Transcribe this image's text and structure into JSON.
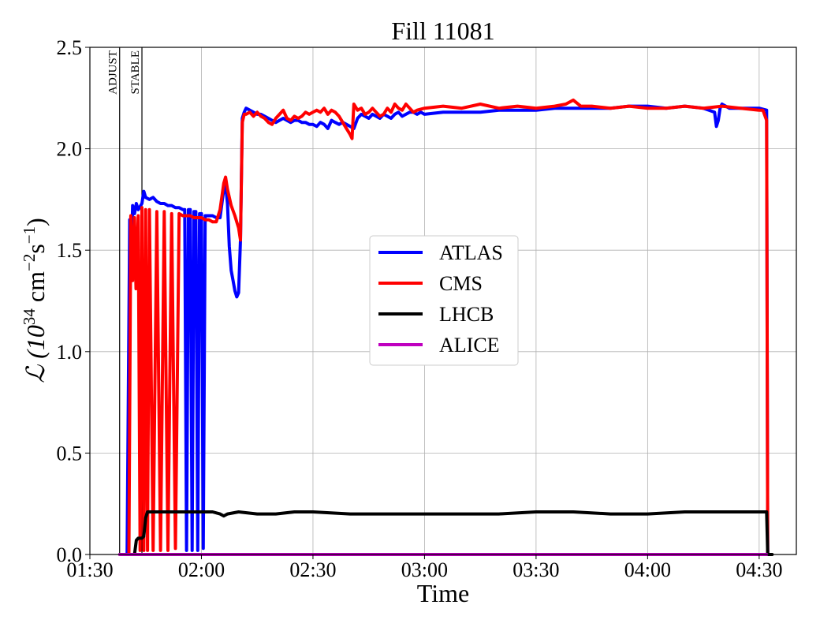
{
  "chart_data": {
    "type": "line",
    "title": "Fill 11081",
    "xlabel": "Time",
    "ylabel_main": "ℒ (10",
    "ylabel_exp1": "34",
    "ylabel_mid": " cm",
    "ylabel_exp2": "−2",
    "ylabel_s": "s",
    "ylabel_exp3": "−1",
    "ylabel_end": ")",
    "xlim": [
      "01:30",
      "04:40"
    ],
    "ylim": [
      0,
      2.5
    ],
    "grid": true,
    "legend_position": "center-right",
    "x_ticks": [
      "01:30",
      "02:00",
      "02:30",
      "03:00",
      "03:30",
      "04:00",
      "04:30"
    ],
    "y_ticks": [
      "0.0",
      "0.5",
      "1.0",
      "1.5",
      "2.0",
      "2.5"
    ],
    "markers": [
      {
        "label": "ADJUST",
        "time": "01:38"
      },
      {
        "label": "STABLE",
        "time": "01:44"
      }
    ],
    "series": [
      {
        "name": "ATLAS",
        "color": "#0000ff",
        "points": [
          [
            "01:40",
            "0.00"
          ],
          [
            "01:40.7",
            "1.65"
          ],
          [
            "01:41",
            "1.35"
          ],
          [
            "01:41.5",
            "1.72"
          ],
          [
            "01:42",
            "1.68"
          ],
          [
            "01:42.5",
            "1.73"
          ],
          [
            "01:43",
            "1.70"
          ],
          [
            "01:44",
            "1.73"
          ],
          [
            "01:44.5",
            "1.79"
          ],
          [
            "01:45",
            "1.76"
          ],
          [
            "01:46",
            "1.75"
          ],
          [
            "01:47",
            "1.76"
          ],
          [
            "01:48",
            "1.74"
          ],
          [
            "01:49",
            "1.73"
          ],
          [
            "01:50",
            "1.73"
          ],
          [
            "01:51",
            "1.72"
          ],
          [
            "01:52",
            "1.72"
          ],
          [
            "01:53",
            "1.71"
          ],
          [
            "01:54",
            "1.71"
          ],
          [
            "01:55",
            "1.70"
          ],
          [
            "01:55.5",
            "1.70"
          ],
          [
            "01:56",
            "0.02"
          ],
          [
            "01:56.5",
            "1.70"
          ],
          [
            "01:57",
            "1.70"
          ],
          [
            "01:57.5",
            "0.02"
          ],
          [
            "01:58",
            "1.69"
          ],
          [
            "01:58.5",
            "1.69"
          ],
          [
            "01:59",
            "0.02"
          ],
          [
            "01:59.5",
            "1.68"
          ],
          [
            "02:00",
            "1.68"
          ],
          [
            "02:00.5",
            "0.03"
          ],
          [
            "02:01",
            "1.67"
          ],
          [
            "02:02",
            "1.67"
          ],
          [
            "02:03",
            "1.67"
          ],
          [
            "02:04",
            "1.66"
          ],
          [
            "02:05",
            "1.66"
          ],
          [
            "02:06",
            "1.80"
          ],
          [
            "02:06.5",
            "1.82"
          ],
          [
            "02:07",
            "1.73"
          ],
          [
            "02:07.5",
            "1.52"
          ],
          [
            "02:08",
            "1.40"
          ],
          [
            "02:08.5",
            "1.35"
          ],
          [
            "02:09",
            "1.30"
          ],
          [
            "02:09.5",
            "1.27"
          ],
          [
            "02:10",
            "1.29"
          ],
          [
            "02:10.5",
            "1.55"
          ],
          [
            "02:11",
            "2.15"
          ],
          [
            "02:11.5",
            "2.18"
          ],
          [
            "02:12",
            "2.20"
          ],
          [
            "02:13",
            "2.19"
          ],
          [
            "02:14",
            "2.18"
          ],
          [
            "02:15",
            "2.17"
          ],
          [
            "02:16",
            "2.17"
          ],
          [
            "02:17",
            "2.16"
          ],
          [
            "02:18",
            "2.15"
          ],
          [
            "02:19",
            "2.14"
          ],
          [
            "02:20",
            "2.13"
          ],
          [
            "02:21",
            "2.14"
          ],
          [
            "02:22",
            "2.15"
          ],
          [
            "02:23",
            "2.14"
          ],
          [
            "02:24",
            "2.13"
          ],
          [
            "02:25",
            "2.14"
          ],
          [
            "02:26",
            "2.14"
          ],
          [
            "02:27",
            "2.13"
          ],
          [
            "02:28",
            "2.13"
          ],
          [
            "02:29",
            "2.12"
          ],
          [
            "02:30",
            "2.12"
          ],
          [
            "02:31",
            "2.11"
          ],
          [
            "02:32",
            "2.13"
          ],
          [
            "02:33",
            "2.12"
          ],
          [
            "02:34",
            "2.10"
          ],
          [
            "02:35",
            "2.14"
          ],
          [
            "02:36",
            "2.13"
          ],
          [
            "02:37",
            "2.12"
          ],
          [
            "02:38",
            "2.13"
          ],
          [
            "02:39",
            "2.12"
          ],
          [
            "02:40",
            "2.11"
          ],
          [
            "02:41",
            "2.10"
          ],
          [
            "02:42",
            "2.15"
          ],
          [
            "02:43",
            "2.17"
          ],
          [
            "02:44",
            "2.16"
          ],
          [
            "02:45",
            "2.15"
          ],
          [
            "02:46",
            "2.17"
          ],
          [
            "02:47",
            "2.16"
          ],
          [
            "02:48",
            "2.15"
          ],
          [
            "02:49",
            "2.17"
          ],
          [
            "02:50",
            "2.16"
          ],
          [
            "02:51",
            "2.15"
          ],
          [
            "02:52",
            "2.17"
          ],
          [
            "02:53",
            "2.18"
          ],
          [
            "02:54",
            "2.16"
          ],
          [
            "02:55",
            "2.17"
          ],
          [
            "02:56",
            "2.18"
          ],
          [
            "02:57",
            "2.18"
          ],
          [
            "02:58",
            "2.17"
          ],
          [
            "02:59",
            "2.18"
          ],
          [
            "03:00",
            "2.17"
          ],
          [
            "03:05",
            "2.18"
          ],
          [
            "03:10",
            "2.18"
          ],
          [
            "03:15",
            "2.18"
          ],
          [
            "03:20",
            "2.19"
          ],
          [
            "03:25",
            "2.19"
          ],
          [
            "03:30",
            "2.19"
          ],
          [
            "03:35",
            "2.20"
          ],
          [
            "03:40",
            "2.20"
          ],
          [
            "03:45",
            "2.20"
          ],
          [
            "03:50",
            "2.20"
          ],
          [
            "03:55",
            "2.21"
          ],
          [
            "04:00",
            "2.21"
          ],
          [
            "04:05",
            "2.20"
          ],
          [
            "04:10",
            "2.21"
          ],
          [
            "04:15",
            "2.20"
          ],
          [
            "04:18",
            "2.18"
          ],
          [
            "04:18.5",
            "2.11"
          ],
          [
            "04:19",
            "2.14"
          ],
          [
            "04:19.5",
            "2.20"
          ],
          [
            "04:20",
            "2.22"
          ],
          [
            "04:22",
            "2.20"
          ],
          [
            "04:25",
            "2.20"
          ],
          [
            "04:28",
            "2.20"
          ],
          [
            "04:30",
            "2.20"
          ],
          [
            "04:32",
            "2.19"
          ],
          [
            "04:32.3",
            "0.00"
          ]
        ]
      },
      {
        "name": "CMS",
        "color": "#ff0000",
        "points": [
          [
            "01:40.5",
            "0.00"
          ],
          [
            "01:41",
            "1.67"
          ],
          [
            "01:41.5",
            "1.35"
          ],
          [
            "01:42",
            "1.66"
          ],
          [
            "01:42.4",
            "1.31"
          ],
          [
            "01:43",
            "1.67"
          ],
          [
            "01:43.5",
            "0.02"
          ],
          [
            "01:44",
            "1.71"
          ],
          [
            "01:44.5",
            "0.02"
          ],
          [
            "01:45",
            "1.70"
          ],
          [
            "01:45.5",
            "0.02"
          ],
          [
            "01:46",
            "1.70"
          ],
          [
            "01:47",
            "0.02"
          ],
          [
            "01:48",
            "1.69"
          ],
          [
            "01:49",
            "0.02"
          ],
          [
            "01:50",
            "1.69"
          ],
          [
            "01:51",
            "0.02"
          ],
          [
            "01:52",
            "1.68"
          ],
          [
            "01:53",
            "0.03"
          ],
          [
            "01:54",
            "1.68"
          ],
          [
            "01:55",
            "1.67"
          ],
          [
            "01:56",
            "1.67"
          ],
          [
            "01:57",
            "1.67"
          ],
          [
            "01:58",
            "1.66"
          ],
          [
            "01:59",
            "1.66"
          ],
          [
            "02:00",
            "1.66"
          ],
          [
            "02:01",
            "1.65"
          ],
          [
            "02:02",
            "1.65"
          ],
          [
            "02:03",
            "1.64"
          ],
          [
            "02:04",
            "1.64"
          ],
          [
            "02:05",
            "1.70"
          ],
          [
            "02:06",
            "1.83"
          ],
          [
            "02:06.5",
            "1.86"
          ],
          [
            "02:07",
            "1.80"
          ],
          [
            "02:08",
            "1.72"
          ],
          [
            "02:09",
            "1.67"
          ],
          [
            "02:10",
            "1.61"
          ],
          [
            "02:10.5",
            "1.55"
          ],
          [
            "02:11",
            "2.13"
          ],
          [
            "02:11.5",
            "2.17"
          ],
          [
            "02:12",
            "2.17"
          ],
          [
            "02:13",
            "2.18"
          ],
          [
            "02:14",
            "2.16"
          ],
          [
            "02:15",
            "2.18"
          ],
          [
            "02:16",
            "2.16"
          ],
          [
            "02:17",
            "2.15"
          ],
          [
            "02:18",
            "2.13"
          ],
          [
            "02:19",
            "2.12"
          ],
          [
            "02:20",
            "2.15"
          ],
          [
            "02:21",
            "2.17"
          ],
          [
            "02:22",
            "2.19"
          ],
          [
            "02:23",
            "2.15"
          ],
          [
            "02:24",
            "2.14"
          ],
          [
            "02:25",
            "2.16"
          ],
          [
            "02:26",
            "2.15"
          ],
          [
            "02:27",
            "2.16"
          ],
          [
            "02:28",
            "2.18"
          ],
          [
            "02:29",
            "2.17"
          ],
          [
            "02:30",
            "2.18"
          ],
          [
            "02:31",
            "2.19"
          ],
          [
            "02:32",
            "2.18"
          ],
          [
            "02:33",
            "2.20"
          ],
          [
            "02:34",
            "2.17"
          ],
          [
            "02:35",
            "2.19"
          ],
          [
            "02:36",
            "2.18"
          ],
          [
            "02:37",
            "2.16"
          ],
          [
            "02:38",
            "2.13"
          ],
          [
            "02:39",
            "2.10"
          ],
          [
            "02:40",
            "2.07"
          ],
          [
            "02:40.5",
            "2.05"
          ],
          [
            "02:41",
            "2.22"
          ],
          [
            "02:42",
            "2.19"
          ],
          [
            "02:43",
            "2.20"
          ],
          [
            "02:44",
            "2.17"
          ],
          [
            "02:45",
            "2.18"
          ],
          [
            "02:46",
            "2.20"
          ],
          [
            "02:47",
            "2.18"
          ],
          [
            "02:48",
            "2.16"
          ],
          [
            "02:49",
            "2.17"
          ],
          [
            "02:50",
            "2.20"
          ],
          [
            "02:51",
            "2.18"
          ],
          [
            "02:52",
            "2.22"
          ],
          [
            "02:53",
            "2.20"
          ],
          [
            "02:54",
            "2.19"
          ],
          [
            "02:55",
            "2.22"
          ],
          [
            "02:56",
            "2.20"
          ],
          [
            "02:57",
            "2.18"
          ],
          [
            "02:58",
            "2.19"
          ],
          [
            "03:00",
            "2.20"
          ],
          [
            "03:05",
            "2.21"
          ],
          [
            "03:10",
            "2.20"
          ],
          [
            "03:15",
            "2.22"
          ],
          [
            "03:20",
            "2.20"
          ],
          [
            "03:25",
            "2.21"
          ],
          [
            "03:30",
            "2.20"
          ],
          [
            "03:35",
            "2.21"
          ],
          [
            "03:38",
            "2.22"
          ],
          [
            "03:40",
            "2.24"
          ],
          [
            "03:42",
            "2.21"
          ],
          [
            "03:45",
            "2.21"
          ],
          [
            "03:50",
            "2.20"
          ],
          [
            "03:55",
            "2.21"
          ],
          [
            "04:00",
            "2.20"
          ],
          [
            "04:05",
            "2.20"
          ],
          [
            "04:10",
            "2.21"
          ],
          [
            "04:15",
            "2.20"
          ],
          [
            "04:20",
            "2.21"
          ],
          [
            "04:25",
            "2.20"
          ],
          [
            "04:30",
            "2.19"
          ],
          [
            "04:31",
            "2.19"
          ],
          [
            "04:32",
            "2.14"
          ],
          [
            "04:32.3",
            "0.00"
          ]
        ]
      },
      {
        "name": "LHCB",
        "color": "#000000",
        "points": [
          [
            "01:42",
            "0.00"
          ],
          [
            "01:42.5",
            "0.07"
          ],
          [
            "01:43",
            "0.08"
          ],
          [
            "01:44",
            "0.08"
          ],
          [
            "01:44.5",
            "0.09"
          ],
          [
            "01:45",
            "0.18"
          ],
          [
            "01:45.5",
            "0.21"
          ],
          [
            "01:46",
            "0.21"
          ],
          [
            "01:50",
            "0.21"
          ],
          [
            "01:55",
            "0.21"
          ],
          [
            "02:00",
            "0.21"
          ],
          [
            "02:03",
            "0.21"
          ],
          [
            "02:05",
            "0.20"
          ],
          [
            "02:06",
            "0.19"
          ],
          [
            "02:07",
            "0.20"
          ],
          [
            "02:10",
            "0.21"
          ],
          [
            "02:15",
            "0.20"
          ],
          [
            "02:20",
            "0.20"
          ],
          [
            "02:25",
            "0.21"
          ],
          [
            "02:30",
            "0.21"
          ],
          [
            "02:40",
            "0.20"
          ],
          [
            "02:50",
            "0.20"
          ],
          [
            "03:00",
            "0.20"
          ],
          [
            "03:10",
            "0.20"
          ],
          [
            "03:20",
            "0.20"
          ],
          [
            "03:30",
            "0.21"
          ],
          [
            "03:40",
            "0.21"
          ],
          [
            "03:50",
            "0.20"
          ],
          [
            "04:00",
            "0.20"
          ],
          [
            "04:10",
            "0.21"
          ],
          [
            "04:20",
            "0.21"
          ],
          [
            "04:30",
            "0.21"
          ],
          [
            "04:32",
            "0.21"
          ],
          [
            "04:32.3",
            "0.00"
          ],
          [
            "04:33.5",
            "0.00"
          ]
        ]
      },
      {
        "name": "ALICE",
        "color": "#bf00bf",
        "points": [
          [
            "01:38",
            "0.00"
          ],
          [
            "04:32",
            "0.00"
          ]
        ]
      }
    ]
  }
}
